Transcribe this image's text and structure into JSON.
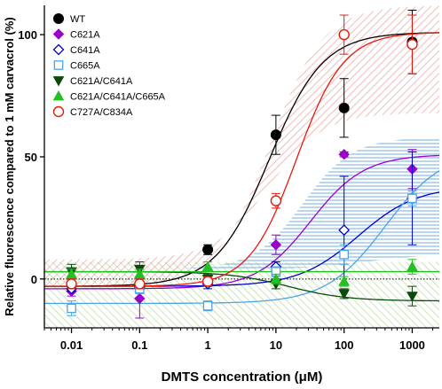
{
  "chart_data": {
    "type": "scatter",
    "xlabel": "DMTS concentration (μM)",
    "ylabel": "Relative fluorescence compared to 1 mM carvacrol (%)",
    "x_scale": "log",
    "xlim": [
      0.004,
      2500
    ],
    "ylim": [
      -20,
      112
    ],
    "x_ticks": [
      0.01,
      0.1,
      1,
      10,
      100,
      1000
    ],
    "x_tick_labels": [
      "0.01",
      "0.1",
      "1",
      "10",
      "100",
      "1000"
    ],
    "y_ticks": [
      0,
      50,
      100
    ],
    "y_tick_labels": [
      "0",
      "50",
      "100"
    ],
    "x": [
      0.01,
      0.1,
      1,
      10,
      100,
      1000
    ],
    "legend_position": "top-left",
    "grid": false,
    "zero_reference_line": "dotted",
    "series": [
      {
        "name": "WT",
        "color": "#000000",
        "marker": "circle-filled",
        "values": [
          -2,
          -3,
          12,
          59,
          70,
          97
        ],
        "errors": [
          2,
          2,
          2,
          8,
          12,
          13
        ],
        "fit": {
          "bottom": -3,
          "top": 101,
          "ec50": 8,
          "hill": 1.1
        },
        "ci_band": "red-hatch"
      },
      {
        "name": "C621A",
        "color": "#9a00cc",
        "marker": "diamond-filled",
        "values": [
          -5,
          -8,
          -1,
          14,
          51,
          45
        ],
        "errors": [
          2,
          8,
          2,
          4,
          1,
          8
        ],
        "fit": {
          "bottom": -4,
          "top": 51,
          "ec50": 32,
          "hill": 1.1
        }
      },
      {
        "name": "C641A",
        "color": "#0000cc",
        "marker": "diamond-open",
        "values": [
          -4,
          -3,
          -2,
          5,
          20,
          33
        ],
        "errors": [
          1,
          2,
          2,
          2,
          22,
          19
        ],
        "fit": {
          "bottom": -3,
          "top": 38,
          "ec50": 160,
          "hill": 1.0
        }
      },
      {
        "name": "C665A",
        "color": "#4ca3e8",
        "marker": "square-open",
        "values": [
          -12,
          -4,
          -11,
          3,
          10,
          33
        ],
        "errors": [
          3,
          2,
          2,
          2,
          4,
          3
        ],
        "fit": {
          "bottom": -10,
          "top": 53,
          "ec50": 400,
          "hill": 1.0
        },
        "ci_band": "blue-hatch"
      },
      {
        "name": "C621A/C641A",
        "color": "#0a4a0a",
        "marker": "triangle-down-filled",
        "values": [
          3,
          4,
          0,
          -2,
          -6,
          -7
        ],
        "errors": [
          3,
          3,
          2,
          2,
          2,
          4
        ],
        "fit": {
          "bottom": 3,
          "top": -9,
          "ec50": 15,
          "hill": 1.0
        }
      },
      {
        "name": "C621A/C641A/C665A",
        "color": "#22c022",
        "marker": "triangle-up-filled",
        "values": [
          2,
          2,
          5,
          0,
          -1,
          5
        ],
        "errors": [
          2,
          2,
          2,
          2,
          2,
          3
        ]
      },
      {
        "name": "C727A/C834A",
        "color": "#e81a0c",
        "marker": "circle-open",
        "values": [
          -2,
          -2,
          -1,
          32,
          100,
          96
        ],
        "errors": [
          2,
          2,
          2,
          3,
          8,
          12
        ],
        "fit": {
          "bottom": -3,
          "top": 101,
          "ec50": 20,
          "hill": 1.25
        }
      }
    ],
    "ci_bands": {
      "red-hatch": {
        "color": "#e8a6a6",
        "low": {
          "bottom": 8,
          "top": 68,
          "ec50": 8,
          "hill": 1.1
        },
        "high": {
          "bottom": -3,
          "top": 112,
          "ec50": 8,
          "hill": 1.1
        }
      },
      "blue-hatch": {
        "color": "#8cb8e8",
        "low": {
          "bottom": 4,
          "top": 10,
          "ec50": 200,
          "hill": 1.0
        },
        "high": {
          "bottom": 4,
          "top": 58,
          "ec50": 25,
          "hill": 1.2
        }
      },
      "green-hatch": {
        "color": "#b4d89a",
        "low": -20,
        "high": 7
      }
    }
  }
}
